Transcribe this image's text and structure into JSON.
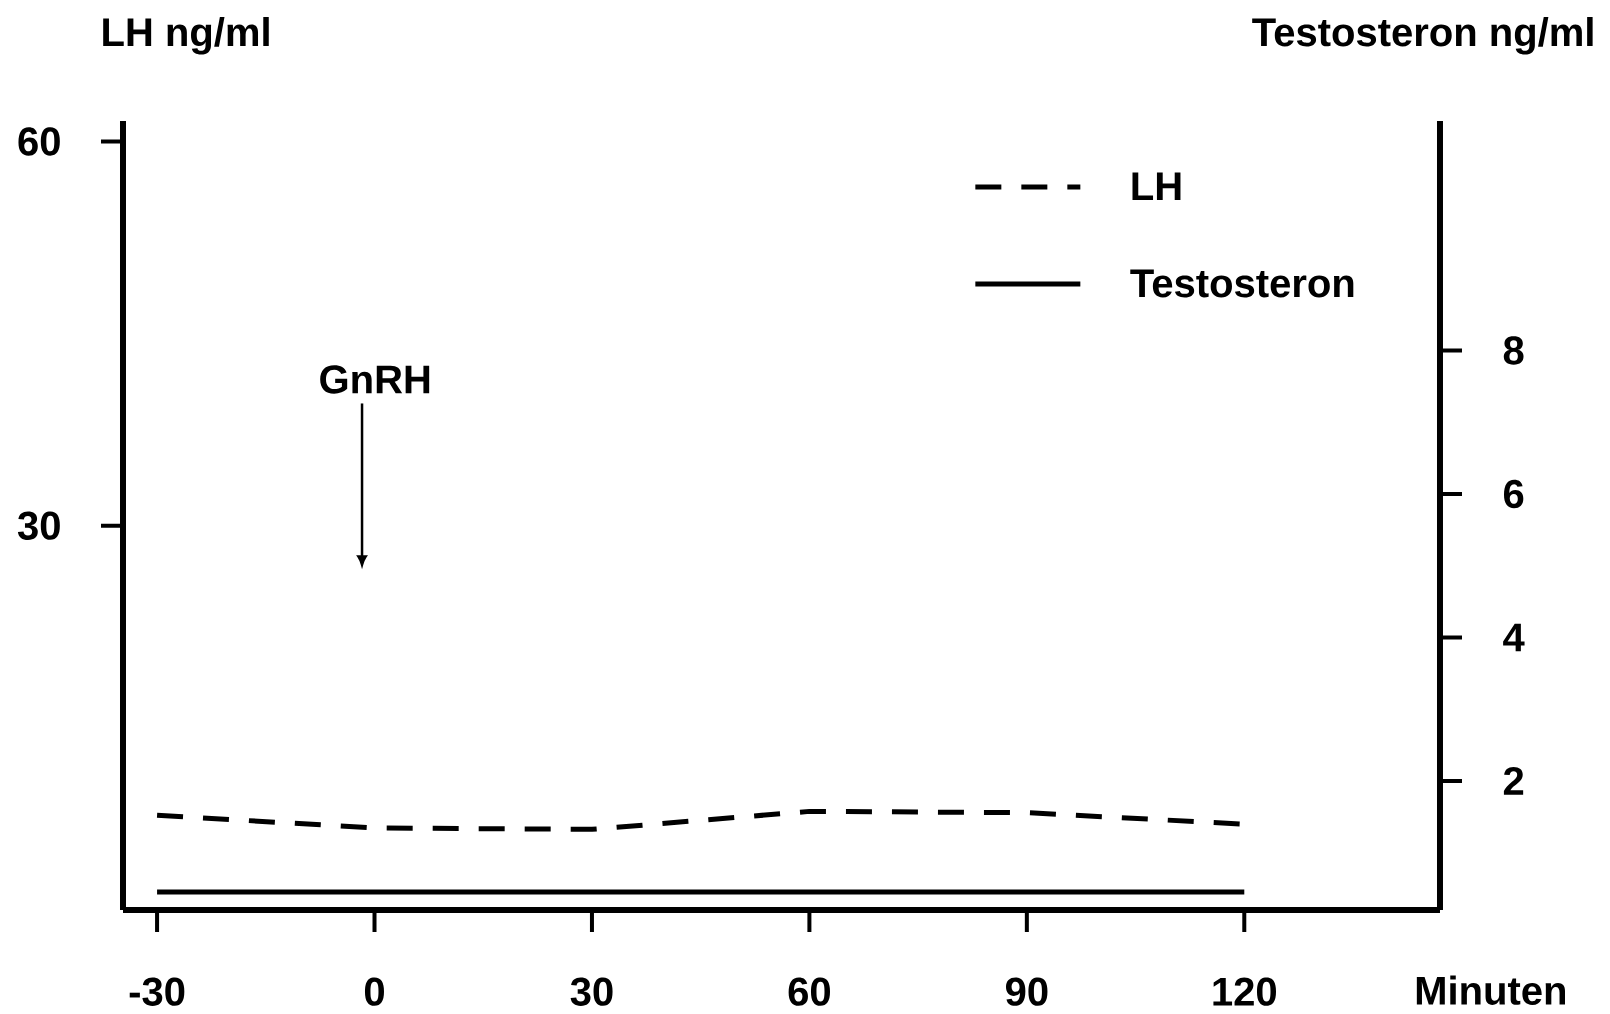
{
  "chart_data": {
    "type": "line",
    "ylabel": "LH ng/ml",
    "y2label": "Testosteron ng/ml",
    "xlabel": "Minuten",
    "x": [
      -30,
      0,
      30,
      60,
      90,
      120
    ],
    "xlim": [
      -34.7,
      147
    ],
    "xticks": [
      -30,
      0,
      30,
      60,
      90,
      120
    ],
    "ylim": [
      0,
      61.6
    ],
    "yticks": [
      30,
      60
    ],
    "y2lim": [
      0.2,
      11.2
    ],
    "y2ticks": [
      2,
      4,
      6,
      8
    ],
    "legend": "top right",
    "grid": false,
    "marker": "none",
    "annotations": [
      "GnRH"
    ],
    "series": [
      {
        "name": "LH",
        "color": "#000000",
        "line_style": "dashed",
        "values": [
          7.4,
          6.4,
          6.3,
          7.7,
          7.6,
          6.7
        ]
      },
      {
        "name": "Testosteron",
        "color": "#000000",
        "line_style": "solid",
        "axis": "y2",
        "values": [
          0.45,
          0.45,
          0.45,
          0.45,
          0.45,
          0.45
        ]
      }
    ]
  }
}
